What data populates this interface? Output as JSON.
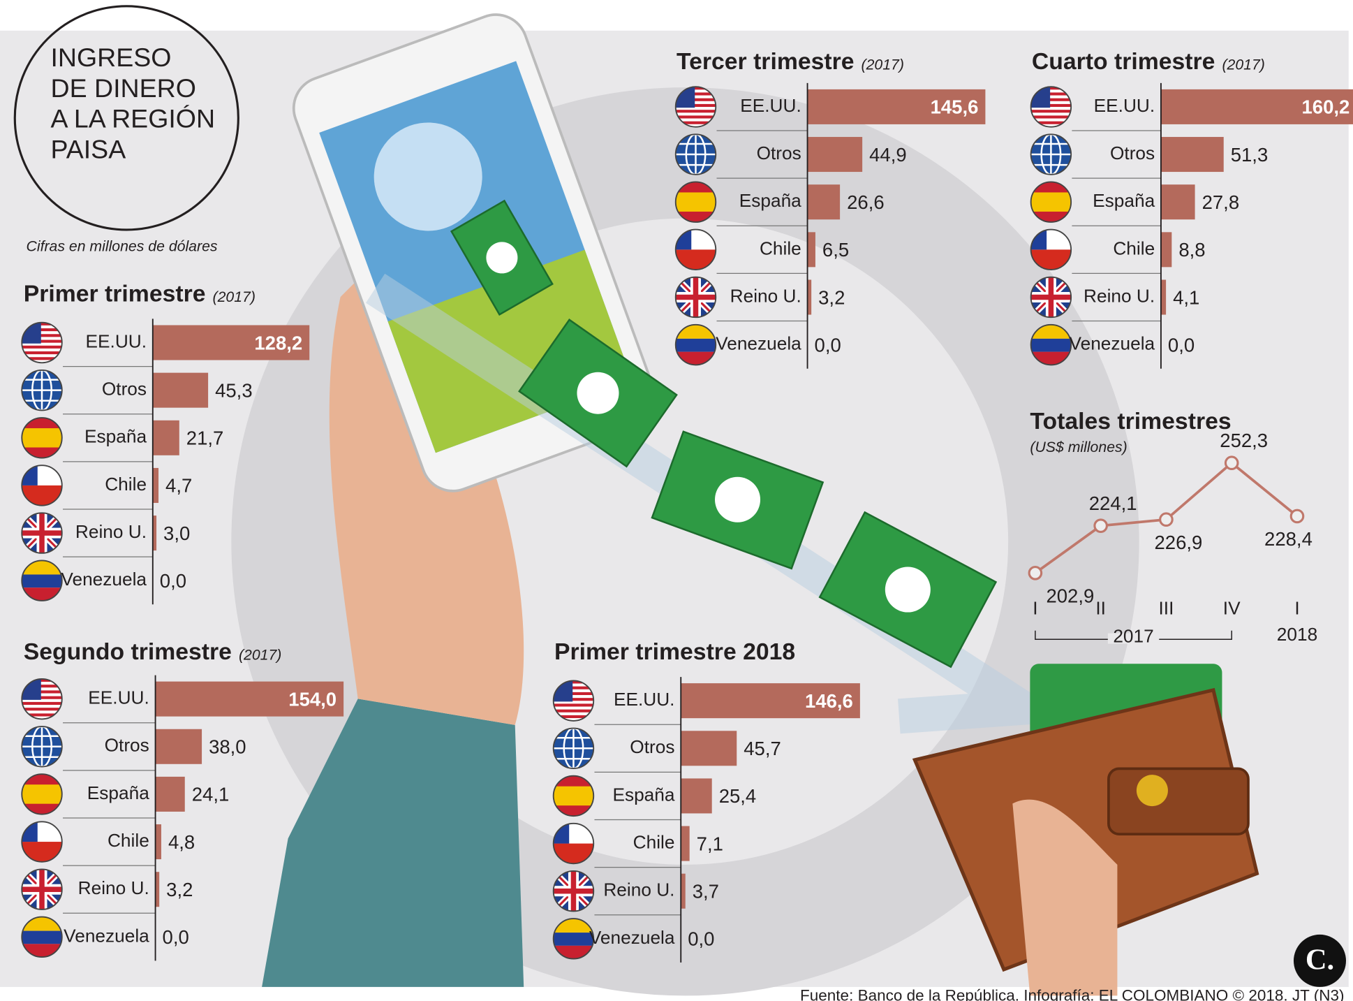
{
  "title": [
    "INGRESO",
    "DE DINERO",
    "A LA REGIÓN",
    "PAISA"
  ],
  "note": "Cifras en millones de dólares",
  "source": "Fuente: Banco de la República. Infografía: EL COLOMBIANO © 2018. JT (N3)",
  "logo": "C.",
  "chart_data": [
    {
      "type": "bar",
      "title": "Primer trimestre",
      "period": "(2017)",
      "color": "#b46a5c",
      "categories": [
        "EE.UU.",
        "Otros",
        "España",
        "Chile",
        "Reino U.",
        "Venezuela"
      ],
      "values": [
        128.2,
        45.3,
        21.7,
        4.7,
        3.0,
        0.0
      ],
      "value_labels": [
        "128,2",
        "45,3",
        "21,7",
        "4,7",
        "3,0",
        "0,0"
      ]
    },
    {
      "type": "bar",
      "title": "Segundo trimestre",
      "period": "(2017)",
      "color": "#b46a5c",
      "categories": [
        "EE.UU.",
        "Otros",
        "España",
        "Chile",
        "Reino U.",
        "Venezuela"
      ],
      "values": [
        154.0,
        38.0,
        24.1,
        4.8,
        3.2,
        0.0
      ],
      "value_labels": [
        "154,0",
        "38,0",
        "24,1",
        "4,8",
        "3,2",
        "0,0"
      ]
    },
    {
      "type": "bar",
      "title": "Tercer trimestre",
      "period": "(2017)",
      "color": "#b46a5c",
      "categories": [
        "EE.UU.",
        "Otros",
        "España",
        "Chile",
        "Reino U.",
        "Venezuela"
      ],
      "values": [
        145.6,
        44.9,
        26.6,
        6.5,
        3.2,
        0.0
      ],
      "value_labels": [
        "145,6",
        "44,9",
        "26,6",
        "6,5",
        "3,2",
        "0,0"
      ]
    },
    {
      "type": "bar",
      "title": "Cuarto trimestre",
      "period": "(2017)",
      "color": "#b46a5c",
      "categories": [
        "EE.UU.",
        "Otros",
        "España",
        "Chile",
        "Reino U.",
        "Venezuela"
      ],
      "values": [
        160.2,
        51.3,
        27.8,
        8.8,
        4.1,
        0.0
      ],
      "value_labels": [
        "160,2",
        "51,3",
        "27,8",
        "8,8",
        "4,1",
        "0,0"
      ]
    },
    {
      "type": "bar",
      "title": "Primer trimestre 2018",
      "color": "#b46a5c",
      "categories": [
        "EE.UU.",
        "Otros",
        "España",
        "Chile",
        "Reino U.",
        "Venezuela"
      ],
      "values": [
        146.6,
        45.7,
        25.4,
        7.1,
        3.7,
        0.0
      ],
      "value_labels": [
        "146,6",
        "45,7",
        "25,4",
        "7,1",
        "3,7",
        "0,0"
      ]
    },
    {
      "type": "line",
      "title": "Totales trimestres",
      "subtitle": "(US$ millones)",
      "color": "#c0786b",
      "categories": [
        "I",
        "II",
        "III",
        "IV",
        "I"
      ],
      "years": [
        "2017",
        "2018"
      ],
      "values": [
        202.9,
        224.1,
        226.9,
        252.3,
        228.4
      ],
      "value_labels": [
        "202,9",
        "224,1",
        "226,9",
        "252,3",
        "228,4"
      ]
    }
  ]
}
